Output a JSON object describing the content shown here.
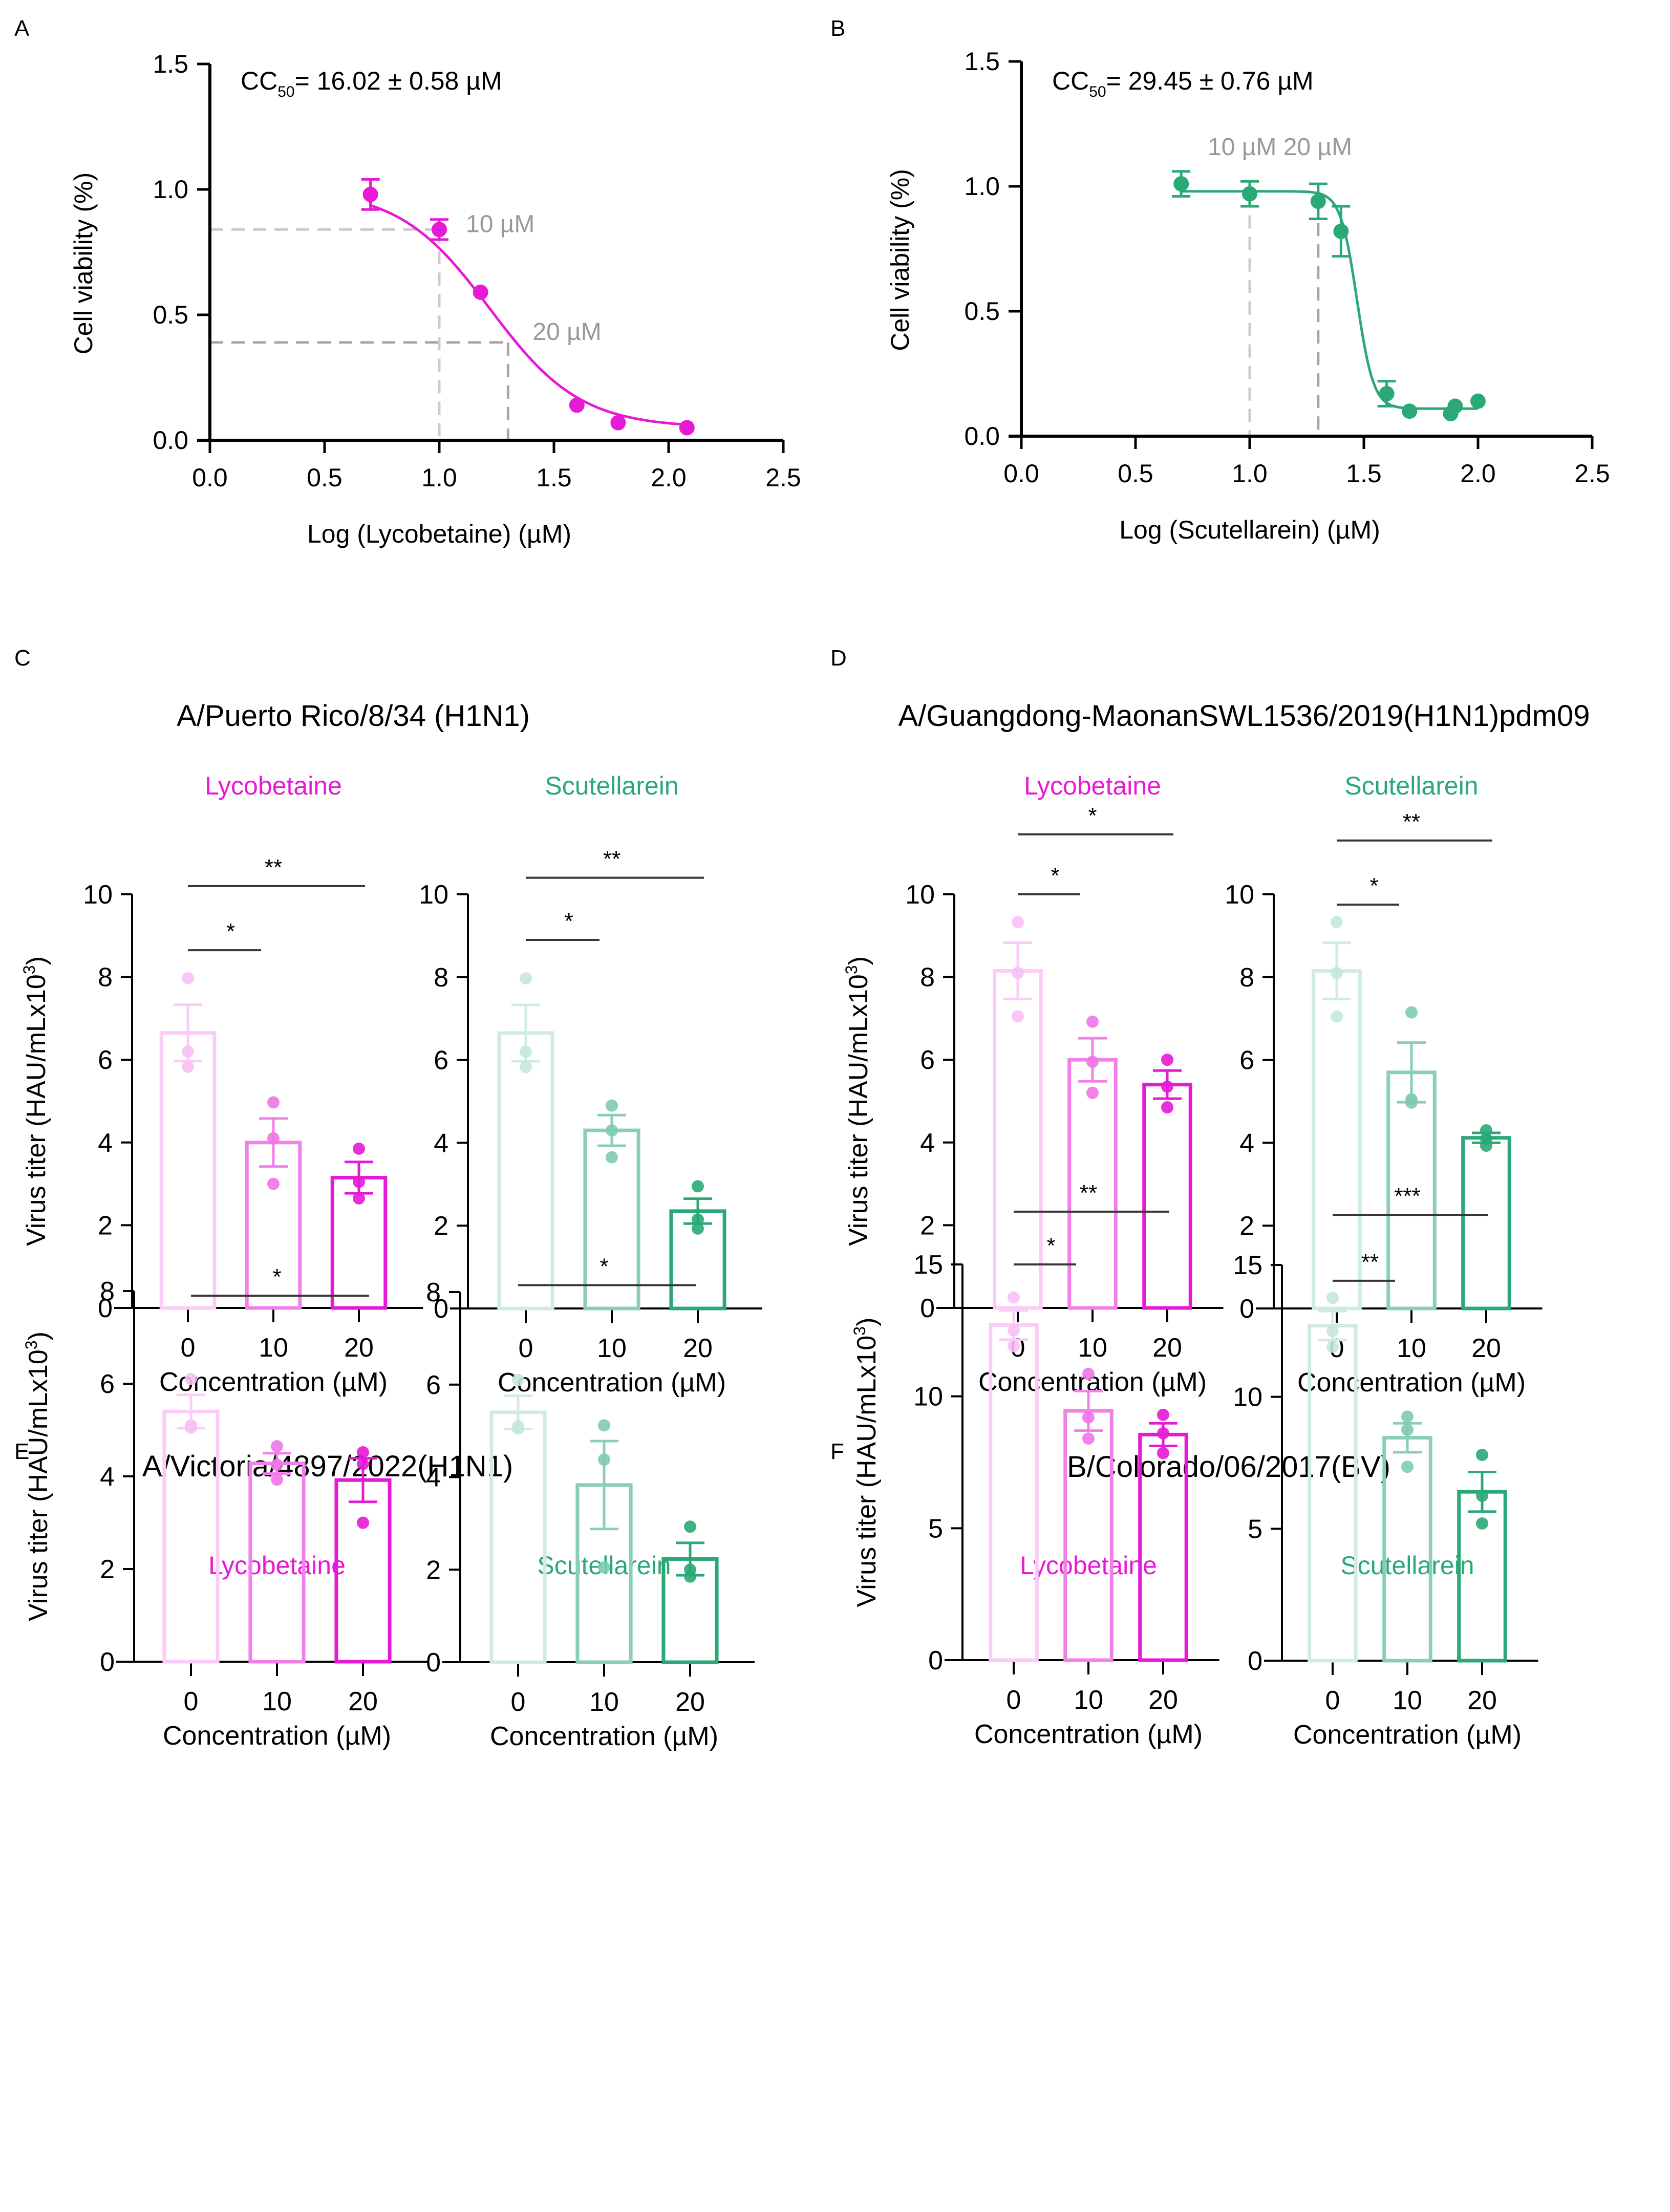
{
  "colors": {
    "lycobetaine": "#e619d6",
    "scutellarein": "#2aa876",
    "axis": "#000000",
    "guide_light": "#cccccc",
    "guide_dark": "#a6a6a6",
    "annotation_gray": "#999999",
    "sig_line": "#3a3434"
  },
  "chart_data": [
    {
      "id": "A",
      "panel_label": "A",
      "type": "scatter",
      "title": "",
      "annotation": {
        "prefix": "CC",
        "sub": "50",
        "suffix": "= 16.02 ± 0.58 µM"
      },
      "xlabel": "Log (Lycobetaine) (µM)",
      "ylabel": "Cell viability (%)",
      "xlim": [
        0,
        2.5
      ],
      "ylim": [
        0,
        1.5
      ],
      "xticks": [
        "0.0",
        "0.5",
        "1.0",
        "1.5",
        "2.0",
        "2.5"
      ],
      "yticks": [
        "0.0",
        "0.5",
        "1.0",
        "1.5"
      ],
      "series_color": "lycobetaine",
      "points": [
        {
          "x": 0.7,
          "y": 0.98,
          "err": 0.06
        },
        {
          "x": 1.0,
          "y": 0.84,
          "err": 0.04
        },
        {
          "x": 1.18,
          "y": 0.59,
          "err": 0
        },
        {
          "x": 1.6,
          "y": 0.14,
          "err": 0
        },
        {
          "x": 1.78,
          "y": 0.07,
          "err": 0
        },
        {
          "x": 2.08,
          "y": 0.05,
          "err": 0
        }
      ],
      "fit": {
        "top": 1.0,
        "bottom": 0.05,
        "logIC50": 1.22,
        "hill": -2.2
      },
      "guides": [
        {
          "label": "10 µM",
          "x": 1.0,
          "y": 0.84,
          "shade": "guide_light"
        },
        {
          "label": "20 µM",
          "x": 1.3,
          "y": 0.39,
          "shade": "guide_dark"
        }
      ]
    },
    {
      "id": "B",
      "panel_label": "B",
      "type": "scatter",
      "title": "",
      "annotation": {
        "prefix": "CC",
        "sub": "50",
        "suffix": "= 29.45 ± 0.76 µM"
      },
      "guide_text": "10 µM 20 µM",
      "xlabel": "Log (Scutellarein) (µM)",
      "ylabel": "Cell viability (%)",
      "xlim": [
        0,
        2.5
      ],
      "ylim": [
        0,
        1.5
      ],
      "xticks": [
        "0.0",
        "0.5",
        "1.0",
        "1.5",
        "2.0",
        "2.5"
      ],
      "yticks": [
        "0.0",
        "0.5",
        "1.0",
        "1.5"
      ],
      "series_color": "scutellarein",
      "points": [
        {
          "x": 0.7,
          "y": 1.01,
          "err": 0.05
        },
        {
          "x": 1.0,
          "y": 0.97,
          "err": 0.05
        },
        {
          "x": 1.3,
          "y": 0.94,
          "err": 0.07
        },
        {
          "x": 1.4,
          "y": 0.82,
          "err": 0.1
        },
        {
          "x": 1.6,
          "y": 0.17,
          "err": 0.05
        },
        {
          "x": 1.7,
          "y": 0.1,
          "err": 0
        },
        {
          "x": 1.88,
          "y": 0.09,
          "err": 0
        },
        {
          "x": 1.9,
          "y": 0.12,
          "err": 0
        },
        {
          "x": 2.0,
          "y": 0.14,
          "err": 0
        }
      ],
      "fit": {
        "top": 0.98,
        "bottom": 0.11,
        "logIC50": 1.47,
        "hill": -12
      },
      "guides": [
        {
          "x": 1.0,
          "y": 0.97,
          "shade": "guide_light"
        },
        {
          "x": 1.3,
          "y": 0.94,
          "shade": "guide_dark"
        }
      ]
    },
    {
      "id": "C",
      "panel_label": "C",
      "type": "bar",
      "title": "A/Puerto Rico/8/34 (H1N1)",
      "ylabel": "Virus titer (HAU/mLx10",
      "ylabel_sup": "3",
      "ylabel_end": ")",
      "xlabel": "Concentration (µM)",
      "categories": [
        "0",
        "10",
        "20"
      ],
      "ylim": [
        0,
        10
      ],
      "yticks": [
        "0",
        "2",
        "4",
        "6",
        "8",
        "10"
      ],
      "subplots": [
        {
          "name": "Lycobetaine",
          "color": "lycobetaine",
          "means": [
            6.65,
            4.0,
            3.15
          ],
          "sem": [
            0.68,
            0.58,
            0.38
          ],
          "points": [
            [
              7.97,
              6.2,
              5.83
            ],
            [
              4.97,
              4.1,
              3.0
            ],
            [
              3.85,
              3.05,
              2.65
            ]
          ],
          "sig": [
            {
              "from": 0,
              "to": 1,
              "label": "*",
              "level": 8.65
            },
            {
              "from": 0,
              "to": 2,
              "label": "**",
              "level": 10.2
            }
          ]
        },
        {
          "name": "Scutellarein",
          "color": "scutellarein",
          "means": [
            6.65,
            4.3,
            2.35
          ],
          "sem": [
            0.68,
            0.37,
            0.3
          ],
          "points": [
            [
              7.97,
              6.2,
              5.83
            ],
            [
              4.9,
              4.3,
              3.65
            ],
            [
              2.95,
              2.15,
              1.93
            ]
          ],
          "sig": [
            {
              "from": 0,
              "to": 1,
              "label": "*",
              "level": 8.9
            },
            {
              "from": 0,
              "to": 2,
              "label": "**",
              "level": 10.4
            }
          ]
        }
      ]
    },
    {
      "id": "D",
      "panel_label": "D",
      "type": "bar",
      "title": "A/Guangdong-MaonanSWL1536/2019(H1N1)pdm09",
      "ylabel": "Virus titer (HAU/mLx10",
      "ylabel_sup": "3",
      "ylabel_end": ")",
      "xlabel": "Concentration (µM)",
      "categories": [
        "0",
        "10",
        "20"
      ],
      "ylim": [
        0,
        10
      ],
      "yticks": [
        "0",
        "2",
        "4",
        "6",
        "8",
        "10"
      ],
      "subplots": [
        {
          "name": "Lycobetaine",
          "color": "lycobetaine",
          "means": [
            8.15,
            6.0,
            5.4
          ],
          "sem": [
            0.68,
            0.52,
            0.34
          ],
          "points": [
            [
              9.33,
              8.1,
              7.05
            ],
            [
              6.92,
              5.95,
              5.2
            ],
            [
              6.0,
              5.35,
              4.85
            ]
          ],
          "sig": [
            {
              "from": 0,
              "to": 1,
              "label": "*",
              "level": 10.0
            },
            {
              "from": 0,
              "to": 2,
              "label": "*",
              "level": 11.45
            }
          ]
        },
        {
          "name": "Scutellarein",
          "color": "scutellarein",
          "means": [
            8.15,
            5.7,
            4.12
          ],
          "sem": [
            0.68,
            0.72,
            0.12
          ],
          "points": [
            [
              9.33,
              8.1,
              7.05
            ],
            [
              7.15,
              5.05,
              4.97
            ],
            [
              4.3,
              4.1,
              3.93
            ]
          ],
          "sig": [
            {
              "from": 0,
              "to": 1,
              "label": "*",
              "level": 9.75
            },
            {
              "from": 0,
              "to": 2,
              "label": "**",
              "level": 11.3
            }
          ]
        }
      ]
    },
    {
      "id": "E",
      "panel_label": "E",
      "type": "bar",
      "title": "A/Victoria/4897/2022(H1N1)",
      "ylabel": "Virus titer (HAU/mLx10",
      "ylabel_sup": "3",
      "ylabel_end": ")",
      "xlabel": "Concentration (µM)",
      "categories": [
        "0",
        "10",
        "20"
      ],
      "ylim": [
        0,
        8
      ],
      "yticks": [
        "0",
        "2",
        "4",
        "6",
        "8"
      ],
      "subplots": [
        {
          "name": "Lycobetaine",
          "color": "lycobetaine",
          "means": [
            5.4,
            4.28,
            3.92
          ],
          "sem": [
            0.36,
            0.22,
            0.47
          ],
          "points": [
            [
              6.1,
              5.1,
              5.05
            ],
            [
              4.65,
              4.25,
              3.93
            ],
            [
              4.52,
              4.27,
              3.0
            ]
          ],
          "sig": [
            {
              "from": 0,
              "to": 2,
              "label": "*",
              "level": 7.9
            }
          ]
        },
        {
          "name": "Scutellarein",
          "color": "scutellarein",
          "means": [
            5.4,
            3.83,
            2.23
          ],
          "sem": [
            0.36,
            0.95,
            0.35
          ],
          "points": [
            [
              6.1,
              5.1,
              5.05
            ],
            [
              5.12,
              4.38,
              2.05
            ],
            [
              2.93,
              2.0,
              1.85
            ]
          ],
          "sig": [
            {
              "from": 0,
              "to": 2,
              "label": "*",
              "level": 8.15
            }
          ]
        }
      ]
    },
    {
      "id": "F",
      "panel_label": "F",
      "type": "bar",
      "title": "B/Colorado/06/2017(BV)",
      "ylabel": "Virus titer (HAU/mLx10",
      "ylabel_sup": "3",
      "ylabel_end": ")",
      "xlabel": "Concentration (µM)",
      "categories": [
        "0",
        "10",
        "20"
      ],
      "ylim": [
        0,
        15
      ],
      "yticks": [
        "0",
        "5",
        "10",
        "15"
      ],
      "subplots": [
        {
          "name": "Lycobetaine",
          "color": "lycobetaine",
          "means": [
            12.7,
            9.45,
            8.55
          ],
          "sem": [
            0.55,
            0.75,
            0.43
          ],
          "points": [
            [
              13.75,
              12.5,
              11.9
            ],
            [
              10.85,
              9.2,
              8.4
            ],
            [
              9.3,
              8.6,
              7.85
            ]
          ],
          "sig": [
            {
              "from": 0,
              "to": 1,
              "label": "*",
              "level": 15.0
            },
            {
              "from": 0,
              "to": 2,
              "label": "**",
              "level": 17.0
            }
          ]
        },
        {
          "name": "Scutellarein",
          "color": "scutellarein",
          "means": [
            12.7,
            8.45,
            6.4
          ],
          "sem": [
            0.55,
            0.55,
            0.75
          ],
          "points": [
            [
              13.75,
              12.5,
              11.9
            ],
            [
              9.25,
              8.75,
              7.35
            ],
            [
              7.8,
              6.25,
              5.2
            ]
          ],
          "sig": [
            {
              "from": 0,
              "to": 1,
              "label": "**",
              "level": 14.4
            },
            {
              "from": 0,
              "to": 2,
              "label": "***",
              "level": 16.9
            }
          ]
        }
      ]
    }
  ]
}
